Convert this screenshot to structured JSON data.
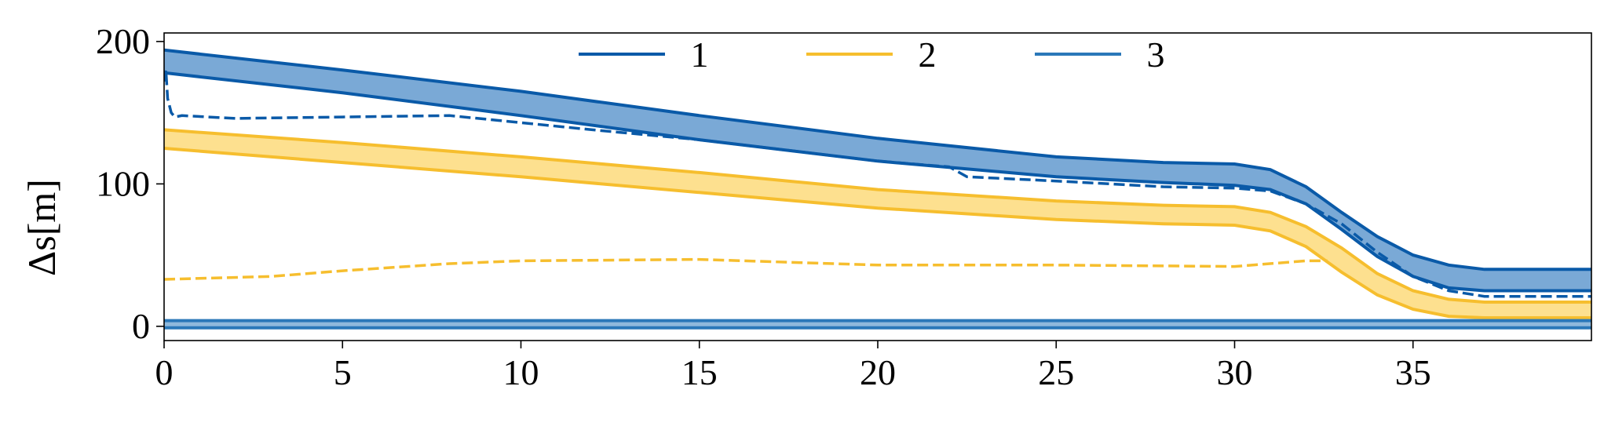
{
  "chart_data": {
    "type": "line",
    "title": "",
    "xlabel": "",
    "ylabel": "Δs[m]",
    "xlim": [
      0,
      40
    ],
    "ylim": [
      -10,
      206
    ],
    "xticks": [
      0,
      5,
      10,
      15,
      20,
      25,
      30,
      35
    ],
    "yticks": [
      0,
      100,
      200
    ],
    "grid": false,
    "legend_position": "top-center",
    "legend": [
      {
        "label": "1",
        "color": "#0a5aa8"
      },
      {
        "label": "2",
        "color": "#f6be2e"
      },
      {
        "label": "3",
        "color": "#2a78b9"
      }
    ],
    "bands": [
      {
        "name": "1",
        "line_color": "#0a5aa8",
        "fill_color": "#7aa9d6",
        "x": [
          0,
          5,
          10,
          15,
          20,
          25,
          28,
          30,
          31,
          32,
          33,
          34,
          35,
          36,
          37,
          40
        ],
        "upper": [
          194,
          180,
          165,
          148,
          132,
          119,
          115,
          114,
          110,
          98,
          80,
          63,
          50,
          43,
          40,
          40
        ],
        "lower": [
          178,
          164,
          148,
          131,
          116,
          105,
          101,
          99,
          96,
          86,
          68,
          49,
          35,
          27,
          25,
          25
        ]
      },
      {
        "name": "2",
        "line_color": "#f6be2e",
        "fill_color": "#fde08f",
        "x": [
          0,
          5,
          10,
          15,
          20,
          25,
          28,
          30,
          31,
          32,
          33,
          34,
          35,
          36,
          37,
          40
        ],
        "upper": [
          138,
          129,
          119,
          108,
          96,
          88,
          85,
          84,
          80,
          70,
          55,
          37,
          25,
          19,
          17,
          17
        ],
        "lower": [
          125,
          115,
          105,
          94,
          83,
          75,
          72,
          71,
          67,
          56,
          38,
          22,
          12,
          7,
          6,
          6
        ]
      },
      {
        "name": "3",
        "line_color": "#2a78b9",
        "fill_color": "#8fb9dc",
        "x": [
          0,
          40
        ],
        "upper": [
          4,
          4
        ],
        "lower": [
          -1,
          -1
        ]
      }
    ],
    "dashed_series": [
      {
        "name": "1",
        "color": "#0a5aa8",
        "x": [
          0,
          0.05,
          0.1,
          0.2,
          0.3,
          0.5,
          2,
          5,
          8,
          10,
          12,
          15,
          18,
          20,
          22,
          22.5,
          25,
          28,
          30,
          31,
          32,
          33,
          34,
          35,
          36,
          37,
          40
        ],
        "y": [
          172,
          180,
          160,
          150,
          147,
          148,
          146,
          147,
          148,
          143,
          138,
          131,
          122,
          116,
          112,
          105,
          102,
          98,
          97,
          95,
          86,
          72,
          52,
          35,
          25,
          21,
          21
        ]
      },
      {
        "name": "2",
        "color": "#f6be2e",
        "x": [
          0,
          3,
          5,
          8,
          10,
          15,
          20,
          25,
          30,
          32,
          32.6
        ],
        "y": [
          33,
          35,
          39,
          44,
          46,
          47,
          43,
          43,
          42,
          46,
          46
        ]
      }
    ]
  }
}
